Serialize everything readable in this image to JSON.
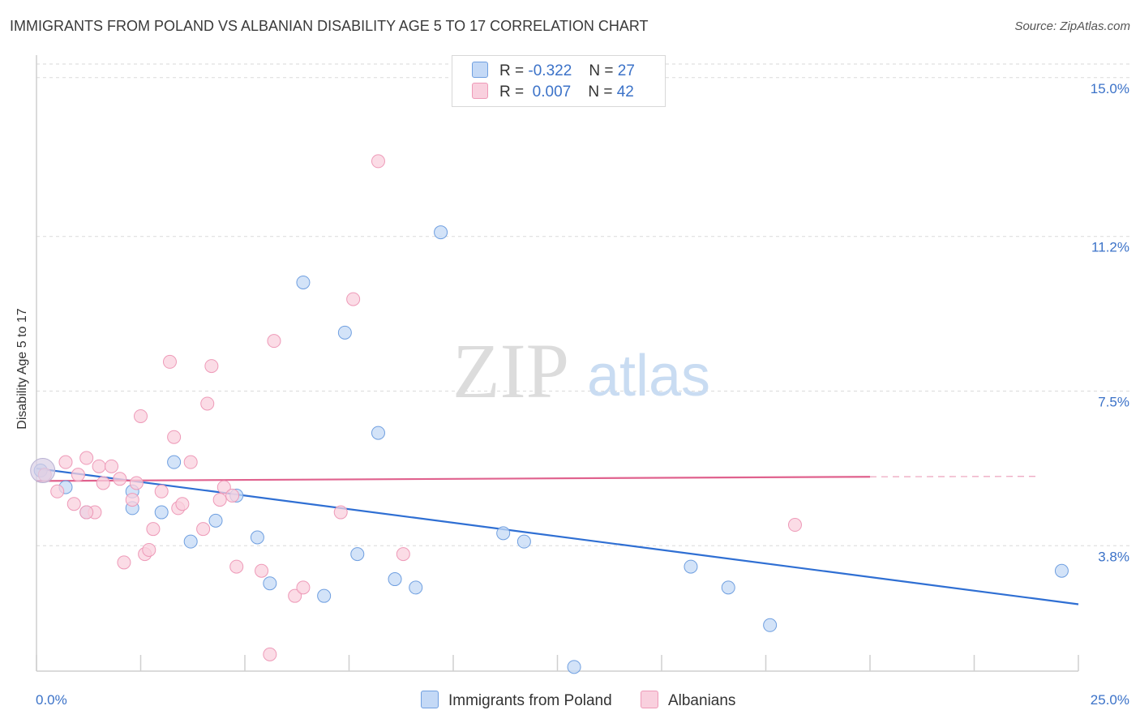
{
  "title": "IMMIGRANTS FROM POLAND VS ALBANIAN DISABILITY AGE 5 TO 17 CORRELATION CHART",
  "source": "Source: ZipAtlas.com",
  "watermark": {
    "zip": "ZIP",
    "atlas": "atlas"
  },
  "legend": {
    "rows": [
      {
        "r_label": "R =",
        "r_value": "-0.322",
        "n_label": "N =",
        "n_value": "27",
        "color": "#aecbf5"
      },
      {
        "r_label": "R =",
        "r_value": "0.007",
        "n_label": "N =",
        "n_value": "42",
        "color": "#f7bfd3"
      }
    ]
  },
  "chart_data": {
    "type": "scatter",
    "title": "IMMIGRANTS FROM POLAND VS ALBANIAN DISABILITY AGE 5 TO 17 CORRELATION CHART",
    "xlabel": "",
    "ylabel": "Disability Age 5 to 17",
    "xlim": [
      0,
      25
    ],
    "ylim": [
      0.8,
      15.5
    ],
    "x_tick_labels": [
      "0.0%",
      "25.0%"
    ],
    "y_ticks": [
      3.8,
      7.5,
      11.2,
      15.0
    ],
    "y_tick_labels": [
      "3.8%",
      "7.5%",
      "11.2%",
      "15.0%"
    ],
    "grid": true,
    "legend_position": "top-center",
    "series": [
      {
        "name": "Immigrants from Poland",
        "color": "#6f9fe0",
        "fill": "#c4d9f6",
        "line_color": "#2f6fd3",
        "trend": {
          "x": [
            0.0,
            25.0
          ],
          "y": [
            5.65,
            2.4
          ]
        },
        "points": [
          [
            0.1,
            5.6
          ],
          [
            0.7,
            5.2
          ],
          [
            1.2,
            4.6
          ],
          [
            2.3,
            5.1
          ],
          [
            2.3,
            4.7
          ],
          [
            3.0,
            4.6
          ],
          [
            3.3,
            5.8
          ],
          [
            3.7,
            3.9
          ],
          [
            4.3,
            4.4
          ],
          [
            4.8,
            5.0
          ],
          [
            5.3,
            4.0
          ],
          [
            5.6,
            2.9
          ],
          [
            6.4,
            10.1
          ],
          [
            6.9,
            2.6
          ],
          [
            7.4,
            8.9
          ],
          [
            7.7,
            3.6
          ],
          [
            8.2,
            6.5
          ],
          [
            8.6,
            3.0
          ],
          [
            9.1,
            2.8
          ],
          [
            9.7,
            11.3
          ],
          [
            11.2,
            4.1
          ],
          [
            11.7,
            3.9
          ],
          [
            12.9,
            0.9
          ],
          [
            15.7,
            3.3
          ],
          [
            16.6,
            2.8
          ],
          [
            17.6,
            1.9
          ],
          [
            24.6,
            3.2
          ]
        ]
      },
      {
        "name": "Albanians",
        "color": "#ee9ab8",
        "fill": "#f9d0de",
        "line_color": "#e0628e",
        "trend": {
          "x": [
            0.0,
            20.0
          ],
          "y": [
            5.35,
            5.45
          ]
        },
        "trend_dashed": {
          "x": [
            20.0,
            24.0
          ],
          "y": [
            5.45,
            5.46
          ]
        },
        "points": [
          [
            0.2,
            5.5
          ],
          [
            0.5,
            5.1
          ],
          [
            0.7,
            5.8
          ],
          [
            0.9,
            4.8
          ],
          [
            1.0,
            5.5
          ],
          [
            1.2,
            5.9
          ],
          [
            1.4,
            4.6
          ],
          [
            1.5,
            5.7
          ],
          [
            1.6,
            5.3
          ],
          [
            1.8,
            5.7
          ],
          [
            2.0,
            5.4
          ],
          [
            2.1,
            3.4
          ],
          [
            2.3,
            4.9
          ],
          [
            2.4,
            5.3
          ],
          [
            2.5,
            6.9
          ],
          [
            2.6,
            3.6
          ],
          [
            2.7,
            3.7
          ],
          [
            3.0,
            5.1
          ],
          [
            3.2,
            8.2
          ],
          [
            3.3,
            6.4
          ],
          [
            3.4,
            4.7
          ],
          [
            3.5,
            4.8
          ],
          [
            3.7,
            5.8
          ],
          [
            4.0,
            4.2
          ],
          [
            4.1,
            7.2
          ],
          [
            4.2,
            8.1
          ],
          [
            4.4,
            4.9
          ],
          [
            4.5,
            5.2
          ],
          [
            4.7,
            5.0
          ],
          [
            4.8,
            3.3
          ],
          [
            5.4,
            3.2
          ],
          [
            5.6,
            1.2
          ],
          [
            5.7,
            8.7
          ],
          [
            6.2,
            2.6
          ],
          [
            6.4,
            2.8
          ],
          [
            7.3,
            4.6
          ],
          [
            7.6,
            9.7
          ],
          [
            8.2,
            13.0
          ],
          [
            8.8,
            3.6
          ],
          [
            18.2,
            4.3
          ],
          [
            1.2,
            4.6
          ],
          [
            2.8,
            4.2
          ]
        ]
      }
    ]
  }
}
